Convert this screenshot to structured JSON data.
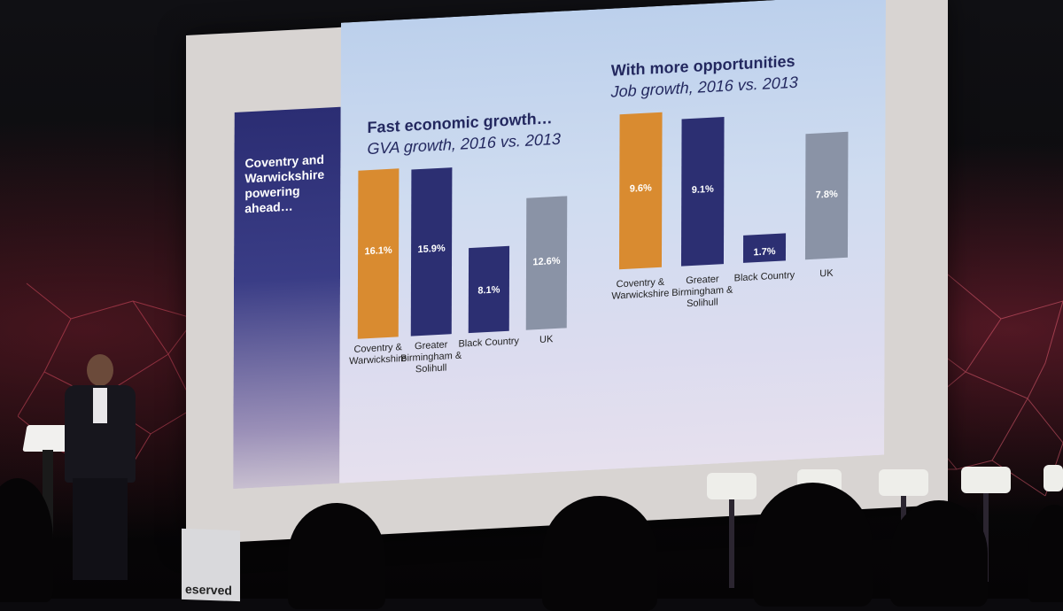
{
  "sidebar": {
    "title": "Coventry and Warwickshire powering ahead…"
  },
  "left_panel": {
    "title": "Fast economic growth…",
    "subtitle": "GVA growth, 2016 vs. 2013"
  },
  "right_panel": {
    "title": "With more opportunities",
    "subtitle": "Job growth, 2016 vs. 2013"
  },
  "colors": {
    "orange": "#d98b30",
    "navy": "#2c2f72",
    "grey": "#8a93a6"
  },
  "chart_data": [
    {
      "type": "bar",
      "title": "Fast economic growth…",
      "subtitle": "GVA growth, 2016 vs. 2013",
      "categories": [
        "Coventry & Warwickshire",
        "Greater Birmingham & Solihull",
        "Black Country",
        "UK"
      ],
      "values": [
        16.1,
        15.9,
        8.1,
        12.6
      ],
      "labels": [
        "16.1%",
        "15.9%",
        "8.1%",
        "12.6%"
      ],
      "colors": [
        "orange",
        "navy",
        "navy",
        "grey"
      ]
    },
    {
      "type": "bar",
      "title": "With more opportunities",
      "subtitle": "Job growth, 2016 vs. 2013",
      "categories": [
        "Coventry & Warwickshire",
        "Greater Birmingham & Solihull",
        "Black Country",
        "UK"
      ],
      "values": [
        9.6,
        9.1,
        1.7,
        7.8
      ],
      "labels": [
        "9.6%",
        "9.1%",
        "1.7%",
        "7.8%"
      ],
      "colors": [
        "orange",
        "navy",
        "navy",
        "grey"
      ]
    }
  ],
  "sign": {
    "text": "eserved"
  }
}
